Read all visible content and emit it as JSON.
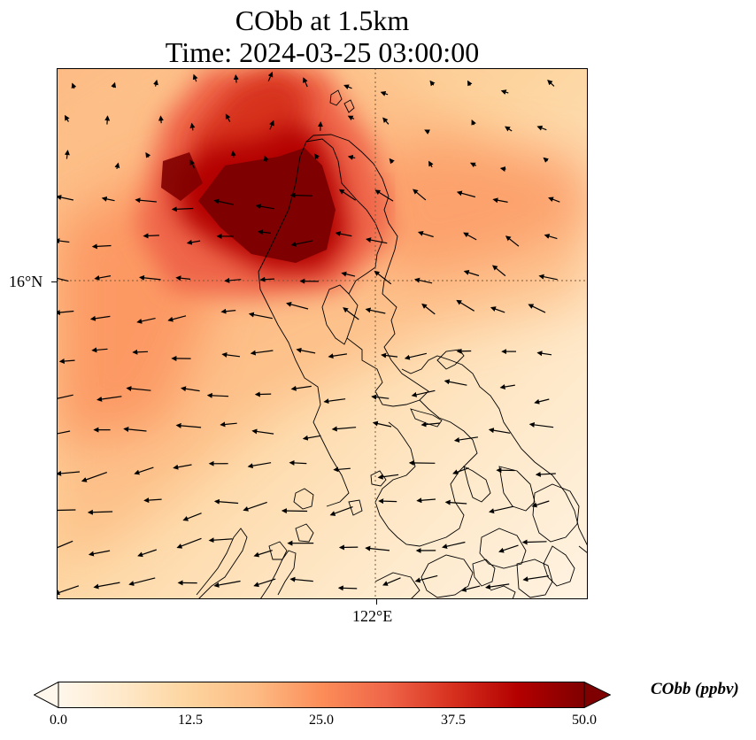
{
  "title": {
    "line1": "CObb at 1.5km",
    "line2": "Time: 2024-03-25 03:00:00"
  },
  "axes": {
    "lat_tick": "16°N",
    "lon_tick": "122°E",
    "gridlines": "dotted"
  },
  "colorbar": {
    "label": "CObb (ppbv)",
    "colormap": "OrRd",
    "min": 0.0,
    "max": 50.0,
    "extend": "both",
    "ticks": [
      "0.0",
      "12.5",
      "25.0",
      "37.5",
      "50.0"
    ],
    "colors": [
      "#fff7ec",
      "#fee8c8",
      "#fdd49e",
      "#fdbb84",
      "#fc8d59",
      "#ef6548",
      "#d7301f",
      "#b30000",
      "#7f0000"
    ]
  },
  "map": {
    "field": "CObb concentration",
    "features": [
      "coastlines",
      "wind vectors"
    ],
    "wind_direction": "mostly westward"
  }
}
